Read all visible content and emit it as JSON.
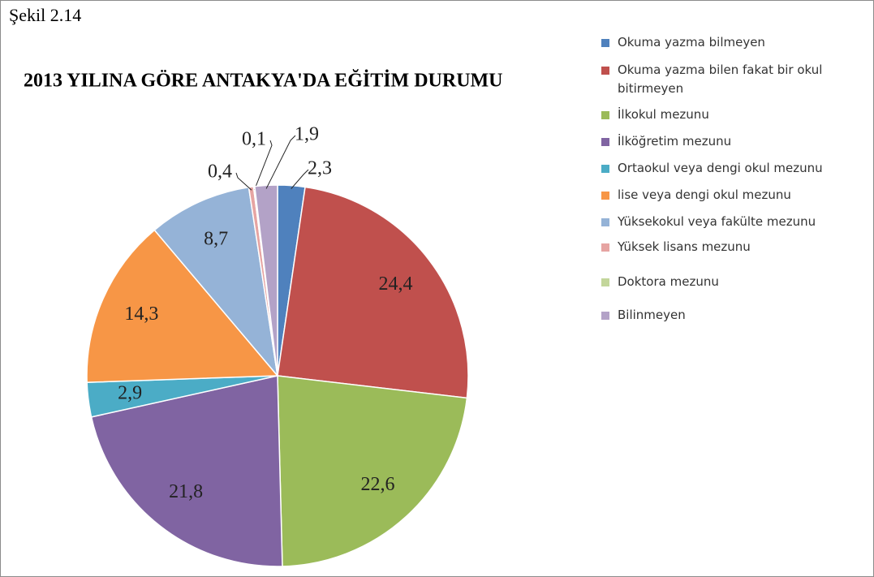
{
  "chart_data": {
    "type": "pie",
    "caption": "Şekil 2.14",
    "title": "2013 YILINA GÖRE ANTAKYA'DA EĞİTİM DURUMU",
    "categories": [
      "Okuma yazma bilmeyen",
      "Okuma yazma bilen fakat bir okul bitirmeyen",
      "İlkokul mezunu",
      "İlköğretim mezunu",
      "Ortaokul veya dengi okul mezunu",
      "lise veya dengi okul mezunu",
      "Yüksekokul veya fakülte mezunu",
      "Yüksek lisans mezunu",
      "Doktora mezunu",
      "Bilinmeyen"
    ],
    "values": [
      2.3,
      24.4,
      22.6,
      21.8,
      2.9,
      14.3,
      8.7,
      0.4,
      0.1,
      1.9
    ],
    "value_labels": [
      "2,3",
      "24,4",
      "22,6",
      "21,8",
      "2,9",
      "14,3",
      "8,7",
      "0,4",
      "0,1",
      "1,9"
    ],
    "colors": [
      "#4F81BD",
      "#C0504D",
      "#9BBB59",
      "#8064A2",
      "#4BACC6",
      "#F79646",
      "#95B3D7",
      "#E6A4A2",
      "#C3D69B",
      "#B3A2C7"
    ],
    "legend": "right"
  }
}
